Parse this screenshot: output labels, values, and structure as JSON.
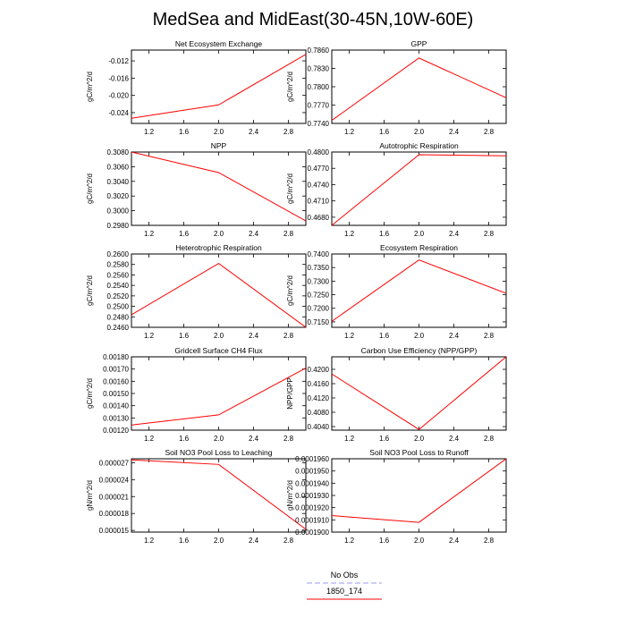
{
  "figure": {
    "title": "MedSea and MidEast(30-45N,10W-60E)"
  },
  "legend": {
    "entries": [
      {
        "label": "No Obs",
        "color": "#9999ee",
        "dash": true
      },
      {
        "label": "1850_174",
        "color": "#ff0000",
        "dash": false
      }
    ]
  },
  "chart_data": [
    {
      "type": "line",
      "title": "Net Ecosystem Exchange",
      "ylabel": "gC/m^2/d",
      "x": [
        1,
        2,
        3
      ],
      "values": [
        -0.0253,
        -0.0222,
        -0.0105
      ],
      "xlim": [
        1,
        3
      ],
      "ylim": [
        -0.0265,
        -0.0095
      ],
      "xticks": [
        1.2,
        1.6,
        2.0,
        2.4,
        2.8
      ],
      "xtick_labels": [
        "1.2",
        "1.6",
        "2.0",
        "2.4",
        "2.8"
      ],
      "yticks": [
        -0.024,
        -0.02,
        -0.016,
        -0.012
      ],
      "ytick_labels": [
        "-0.024",
        "-0.020",
        "-0.016",
        "-0.012"
      ],
      "series_color": "#ff0000"
    },
    {
      "type": "line",
      "title": "GPP",
      "ylabel": "gC/m^2/d",
      "x": [
        1,
        2,
        3
      ],
      "values": [
        0.7745,
        0.7847,
        0.7782
      ],
      "xlim": [
        1,
        3
      ],
      "ylim": [
        0.774,
        0.786
      ],
      "xticks": [
        1.2,
        1.6,
        2.0,
        2.4,
        2.8
      ],
      "xtick_labels": [
        "1.2",
        "1.6",
        "2.0",
        "2.4",
        "2.8"
      ],
      "yticks": [
        0.774,
        0.777,
        0.78,
        0.783,
        0.786
      ],
      "ytick_labels": [
        "0.7740",
        "0.7770",
        "0.7800",
        "0.7830",
        "0.7860"
      ],
      "series_color": "#ff0000"
    },
    {
      "type": "line",
      "title": "NPP",
      "ylabel": "gC/m^2/d",
      "x": [
        1,
        2,
        3
      ],
      "values": [
        0.308,
        0.3052,
        0.2986
      ],
      "xlim": [
        1,
        3
      ],
      "ylim": [
        0.298,
        0.308
      ],
      "xticks": [
        1.2,
        1.6,
        2.0,
        2.4,
        2.8
      ],
      "xtick_labels": [
        "1.2",
        "1.6",
        "2.0",
        "2.4",
        "2.8"
      ],
      "yticks": [
        0.298,
        0.3,
        0.302,
        0.304,
        0.306,
        0.308
      ],
      "ytick_labels": [
        "0.2980",
        "0.3000",
        "0.3020",
        "0.3040",
        "0.3060",
        "0.3080"
      ],
      "series_color": "#ff0000"
    },
    {
      "type": "line",
      "title": "Autotrophic Respiration",
      "ylabel": "gC/m^2/d",
      "x": [
        1,
        2,
        3
      ],
      "values": [
        0.4665,
        0.4795,
        0.4793
      ],
      "xlim": [
        1,
        3
      ],
      "ylim": [
        0.4665,
        0.48
      ],
      "xticks": [
        1.2,
        1.6,
        2.0,
        2.4,
        2.8
      ],
      "xtick_labels": [
        "1.2",
        "1.6",
        "2.0",
        "2.4",
        "2.8"
      ],
      "yticks": [
        0.468,
        0.471,
        0.474,
        0.477,
        0.48
      ],
      "ytick_labels": [
        "0.4680",
        "0.4710",
        "0.4740",
        "0.4770",
        "0.4800"
      ],
      "series_color": "#ff0000"
    },
    {
      "type": "line",
      "title": "Heterotrophic Respiration",
      "ylabel": "gC/m^2/d",
      "x": [
        1,
        2,
        3
      ],
      "values": [
        0.2484,
        0.2582,
        0.246
      ],
      "xlim": [
        1,
        3
      ],
      "ylim": [
        0.246,
        0.26
      ],
      "xticks": [
        1.2,
        1.6,
        2.0,
        2.4,
        2.8
      ],
      "xtick_labels": [
        "1.2",
        "1.6",
        "2.0",
        "2.4",
        "2.8"
      ],
      "yticks": [
        0.246,
        0.248,
        0.25,
        0.252,
        0.254,
        0.256,
        0.258,
        0.26
      ],
      "ytick_labels": [
        "0.2460",
        "0.2480",
        "0.2500",
        "0.2520",
        "0.2540",
        "0.2560",
        "0.2580",
        "0.2600"
      ],
      "series_color": "#ff0000"
    },
    {
      "type": "line",
      "title": "Ecosystem Respiration",
      "ylabel": "gC/m^2/d",
      "x": [
        1,
        2,
        3
      ],
      "values": [
        0.7152,
        0.7378,
        0.7255
      ],
      "xlim": [
        1,
        3
      ],
      "ylim": [
        0.713,
        0.74
      ],
      "xticks": [
        1.2,
        1.6,
        2.0,
        2.4,
        2.8
      ],
      "xtick_labels": [
        "1.2",
        "1.6",
        "2.0",
        "2.4",
        "2.8"
      ],
      "yticks": [
        0.715,
        0.72,
        0.725,
        0.73,
        0.735,
        0.74
      ],
      "ytick_labels": [
        "0.7150",
        "0.7200",
        "0.7250",
        "0.7300",
        "0.7350",
        "0.7400"
      ],
      "series_color": "#ff0000"
    },
    {
      "type": "line",
      "title": "Gridcell Surface CH4 Flux",
      "ylabel": "gC/m^2/d",
      "x": [
        1,
        2,
        3
      ],
      "values": [
        0.001242,
        0.001325,
        0.001708
      ],
      "xlim": [
        1,
        3
      ],
      "ylim": [
        0.0012,
        0.0018
      ],
      "xticks": [
        1.2,
        1.6,
        2.0,
        2.4,
        2.8
      ],
      "xtick_labels": [
        "1.2",
        "1.6",
        "2.0",
        "2.4",
        "2.8"
      ],
      "yticks": [
        0.0012,
        0.0013,
        0.0014,
        0.0015,
        0.0016,
        0.0017,
        0.0018
      ],
      "ytick_labels": [
        "0.00120",
        "0.00130",
        "0.00140",
        "0.00150",
        "0.00160",
        "0.00170",
        "0.00180"
      ],
      "series_color": "#ff0000"
    },
    {
      "type": "line",
      "title": "Carbon Use Efficiency (NPP/GPP)",
      "ylabel": "NPP/GPP",
      "x": [
        1,
        2,
        3
      ],
      "values": [
        0.4187,
        0.4032,
        0.4235
      ],
      "xlim": [
        1,
        3
      ],
      "ylim": [
        0.403,
        0.4235
      ],
      "xticks": [
        1.2,
        1.6,
        2.0,
        2.4,
        2.8
      ],
      "xtick_labels": [
        "1.2",
        "1.6",
        "2.0",
        "2.4",
        "2.8"
      ],
      "yticks": [
        0.404,
        0.408,
        0.412,
        0.416,
        0.42
      ],
      "ytick_labels": [
        "0.4040",
        "0.4080",
        "0.4120",
        "0.4160",
        "0.4200"
      ],
      "series_color": "#ff0000"
    },
    {
      "type": "line",
      "title": "Soil NO3 Pool Loss to Leaching",
      "ylabel": "gN/m^2/d",
      "x": [
        1,
        2,
        3
      ],
      "values": [
        2.75e-05,
        2.67e-05,
        1.52e-05
      ],
      "xlim": [
        1,
        3
      ],
      "ylim": [
        1.47e-05,
        2.77e-05
      ],
      "xticks": [
        1.2,
        1.6,
        2.0,
        2.4,
        2.8
      ],
      "xtick_labels": [
        "1.2",
        "1.6",
        "2.0",
        "2.4",
        "2.8"
      ],
      "yticks": [
        1.5e-05,
        1.8e-05,
        2.1e-05,
        2.4e-05,
        2.7e-05
      ],
      "ytick_labels": [
        "0.000015",
        "0.000018",
        "0.000021",
        "0.000024",
        "0.000027"
      ],
      "series_color": "#ff0000"
    },
    {
      "type": "line",
      "title": "Soil NO3 Pool Loss to Runoff",
      "ylabel": "gN/m^2/d",
      "x": [
        1,
        2,
        3
      ],
      "values": [
        0.00019135,
        0.0001908,
        0.000196
      ],
      "xlim": [
        1,
        3
      ],
      "ylim": [
        0.00019,
        0.000196
      ],
      "xticks": [
        1.2,
        1.6,
        2.0,
        2.4,
        2.8
      ],
      "xtick_labels": [
        "1.2",
        "1.6",
        "2.0",
        "2.4",
        "2.8"
      ],
      "yticks": [
        0.00019,
        0.000191,
        0.000192,
        0.000193,
        0.000194,
        0.000195,
        0.000196
      ],
      "ytick_labels": [
        "0.0001900",
        "0.0001910",
        "0.0001920",
        "0.0001930",
        "0.0001940",
        "0.0001950",
        "0.0001960"
      ],
      "series_color": "#ff0000"
    }
  ]
}
